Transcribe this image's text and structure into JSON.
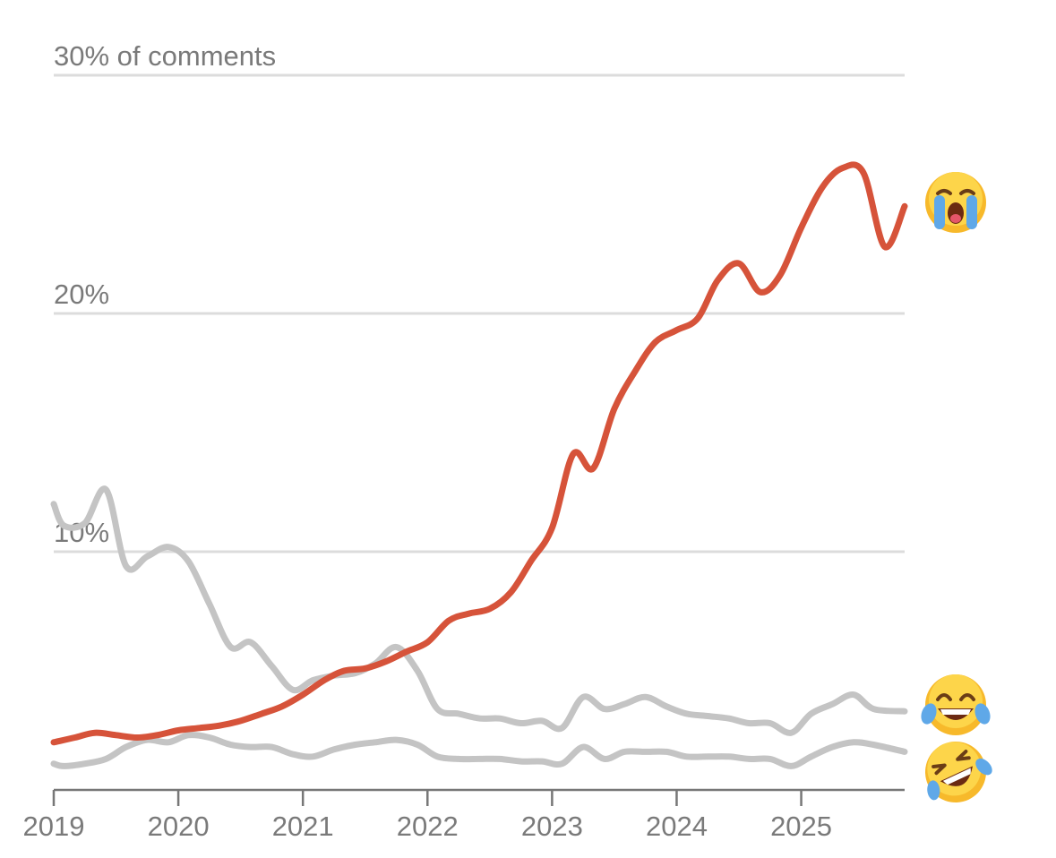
{
  "chart_data": {
    "type": "line",
    "y_tick_labels": [
      "30% of comments",
      "20%",
      "10%"
    ],
    "y_ticks": [
      30,
      20,
      10
    ],
    "ylim": [
      0,
      30
    ],
    "xlim": [
      2019.0,
      2025.83
    ],
    "x_ticks": [
      2019,
      2020,
      2021,
      2022,
      2023,
      2024,
      2025
    ],
    "x_tick_labels": [
      "2019",
      "2020",
      "2021",
      "2022",
      "2023",
      "2024",
      "2025"
    ],
    "grid": true,
    "series": [
      {
        "icon": "loudly-crying-face",
        "emoji": "😭",
        "color": "#d6533a",
        "x": [
          2019.0,
          2019.17,
          2019.33,
          2019.5,
          2019.67,
          2019.83,
          2020.0,
          2020.17,
          2020.33,
          2020.5,
          2020.67,
          2020.83,
          2021.0,
          2021.17,
          2021.33,
          2021.5,
          2021.67,
          2021.83,
          2022.0,
          2022.17,
          2022.33,
          2022.5,
          2022.67,
          2022.83,
          2023.0,
          2023.17,
          2023.33,
          2023.5,
          2023.67,
          2023.83,
          2024.0,
          2024.17,
          2024.33,
          2024.5,
          2024.67,
          2024.83,
          2025.0,
          2025.17,
          2025.33,
          2025.5,
          2025.67,
          2025.83
        ],
        "values": [
          2.0,
          2.2,
          2.4,
          2.3,
          2.2,
          2.3,
          2.5,
          2.6,
          2.7,
          2.9,
          3.2,
          3.5,
          4.0,
          4.6,
          5.0,
          5.1,
          5.4,
          5.8,
          6.2,
          7.1,
          7.4,
          7.6,
          8.3,
          9.6,
          11.0,
          14.1,
          13.5,
          16.0,
          17.6,
          18.8,
          19.3,
          19.8,
          21.4,
          22.1,
          20.9,
          21.6,
          23.6,
          25.3,
          26.1,
          25.9,
          22.8,
          24.5
        ]
      },
      {
        "icon": "face-with-tears-of-joy",
        "emoji": "😂",
        "color": "#c4c4c4",
        "x": [
          2019.0,
          2019.08,
          2019.25,
          2019.42,
          2019.58,
          2019.75,
          2019.92,
          2020.08,
          2020.25,
          2020.42,
          2020.58,
          2020.75,
          2020.92,
          2021.08,
          2021.25,
          2021.42,
          2021.58,
          2021.75,
          2021.92,
          2022.08,
          2022.25,
          2022.42,
          2022.58,
          2022.75,
          2022.92,
          2023.08,
          2023.25,
          2023.42,
          2023.58,
          2023.75,
          2023.92,
          2024.08,
          2024.25,
          2024.42,
          2024.58,
          2024.75,
          2024.92,
          2025.08,
          2025.25,
          2025.42,
          2025.58,
          2025.83
        ],
        "values": [
          12.0,
          11.1,
          11.2,
          12.6,
          9.4,
          9.8,
          10.2,
          9.6,
          7.8,
          6.0,
          6.2,
          5.2,
          4.2,
          4.6,
          4.8,
          4.9,
          5.3,
          6.0,
          5.0,
          3.4,
          3.2,
          3.0,
          3.0,
          2.8,
          2.9,
          2.6,
          3.9,
          3.4,
          3.6,
          3.9,
          3.5,
          3.2,
          3.1,
          3.0,
          2.8,
          2.8,
          2.4,
          3.2,
          3.6,
          4.0,
          3.4,
          3.3
        ]
      },
      {
        "icon": "rolling-on-the-floor-laughing",
        "emoji": "🤣",
        "color": "#c4c4c4",
        "x": [
          2019.0,
          2019.08,
          2019.25,
          2019.42,
          2019.58,
          2019.75,
          2019.92,
          2020.08,
          2020.25,
          2020.42,
          2020.58,
          2020.75,
          2020.92,
          2021.08,
          2021.25,
          2021.42,
          2021.58,
          2021.75,
          2021.92,
          2022.08,
          2022.25,
          2022.42,
          2022.58,
          2022.75,
          2022.92,
          2023.08,
          2023.25,
          2023.42,
          2023.58,
          2023.75,
          2023.92,
          2024.08,
          2024.25,
          2024.42,
          2024.58,
          2024.75,
          2024.92,
          2025.08,
          2025.25,
          2025.42,
          2025.58,
          2025.83
        ],
        "values": [
          1.1,
          1.0,
          1.1,
          1.3,
          1.8,
          2.1,
          2.0,
          2.3,
          2.2,
          1.9,
          1.8,
          1.8,
          1.5,
          1.4,
          1.7,
          1.9,
          2.0,
          2.1,
          1.9,
          1.4,
          1.3,
          1.3,
          1.3,
          1.2,
          1.2,
          1.1,
          1.8,
          1.3,
          1.6,
          1.6,
          1.6,
          1.4,
          1.4,
          1.4,
          1.3,
          1.3,
          1.0,
          1.4,
          1.8,
          2.0,
          1.9,
          1.6
        ]
      }
    ]
  }
}
